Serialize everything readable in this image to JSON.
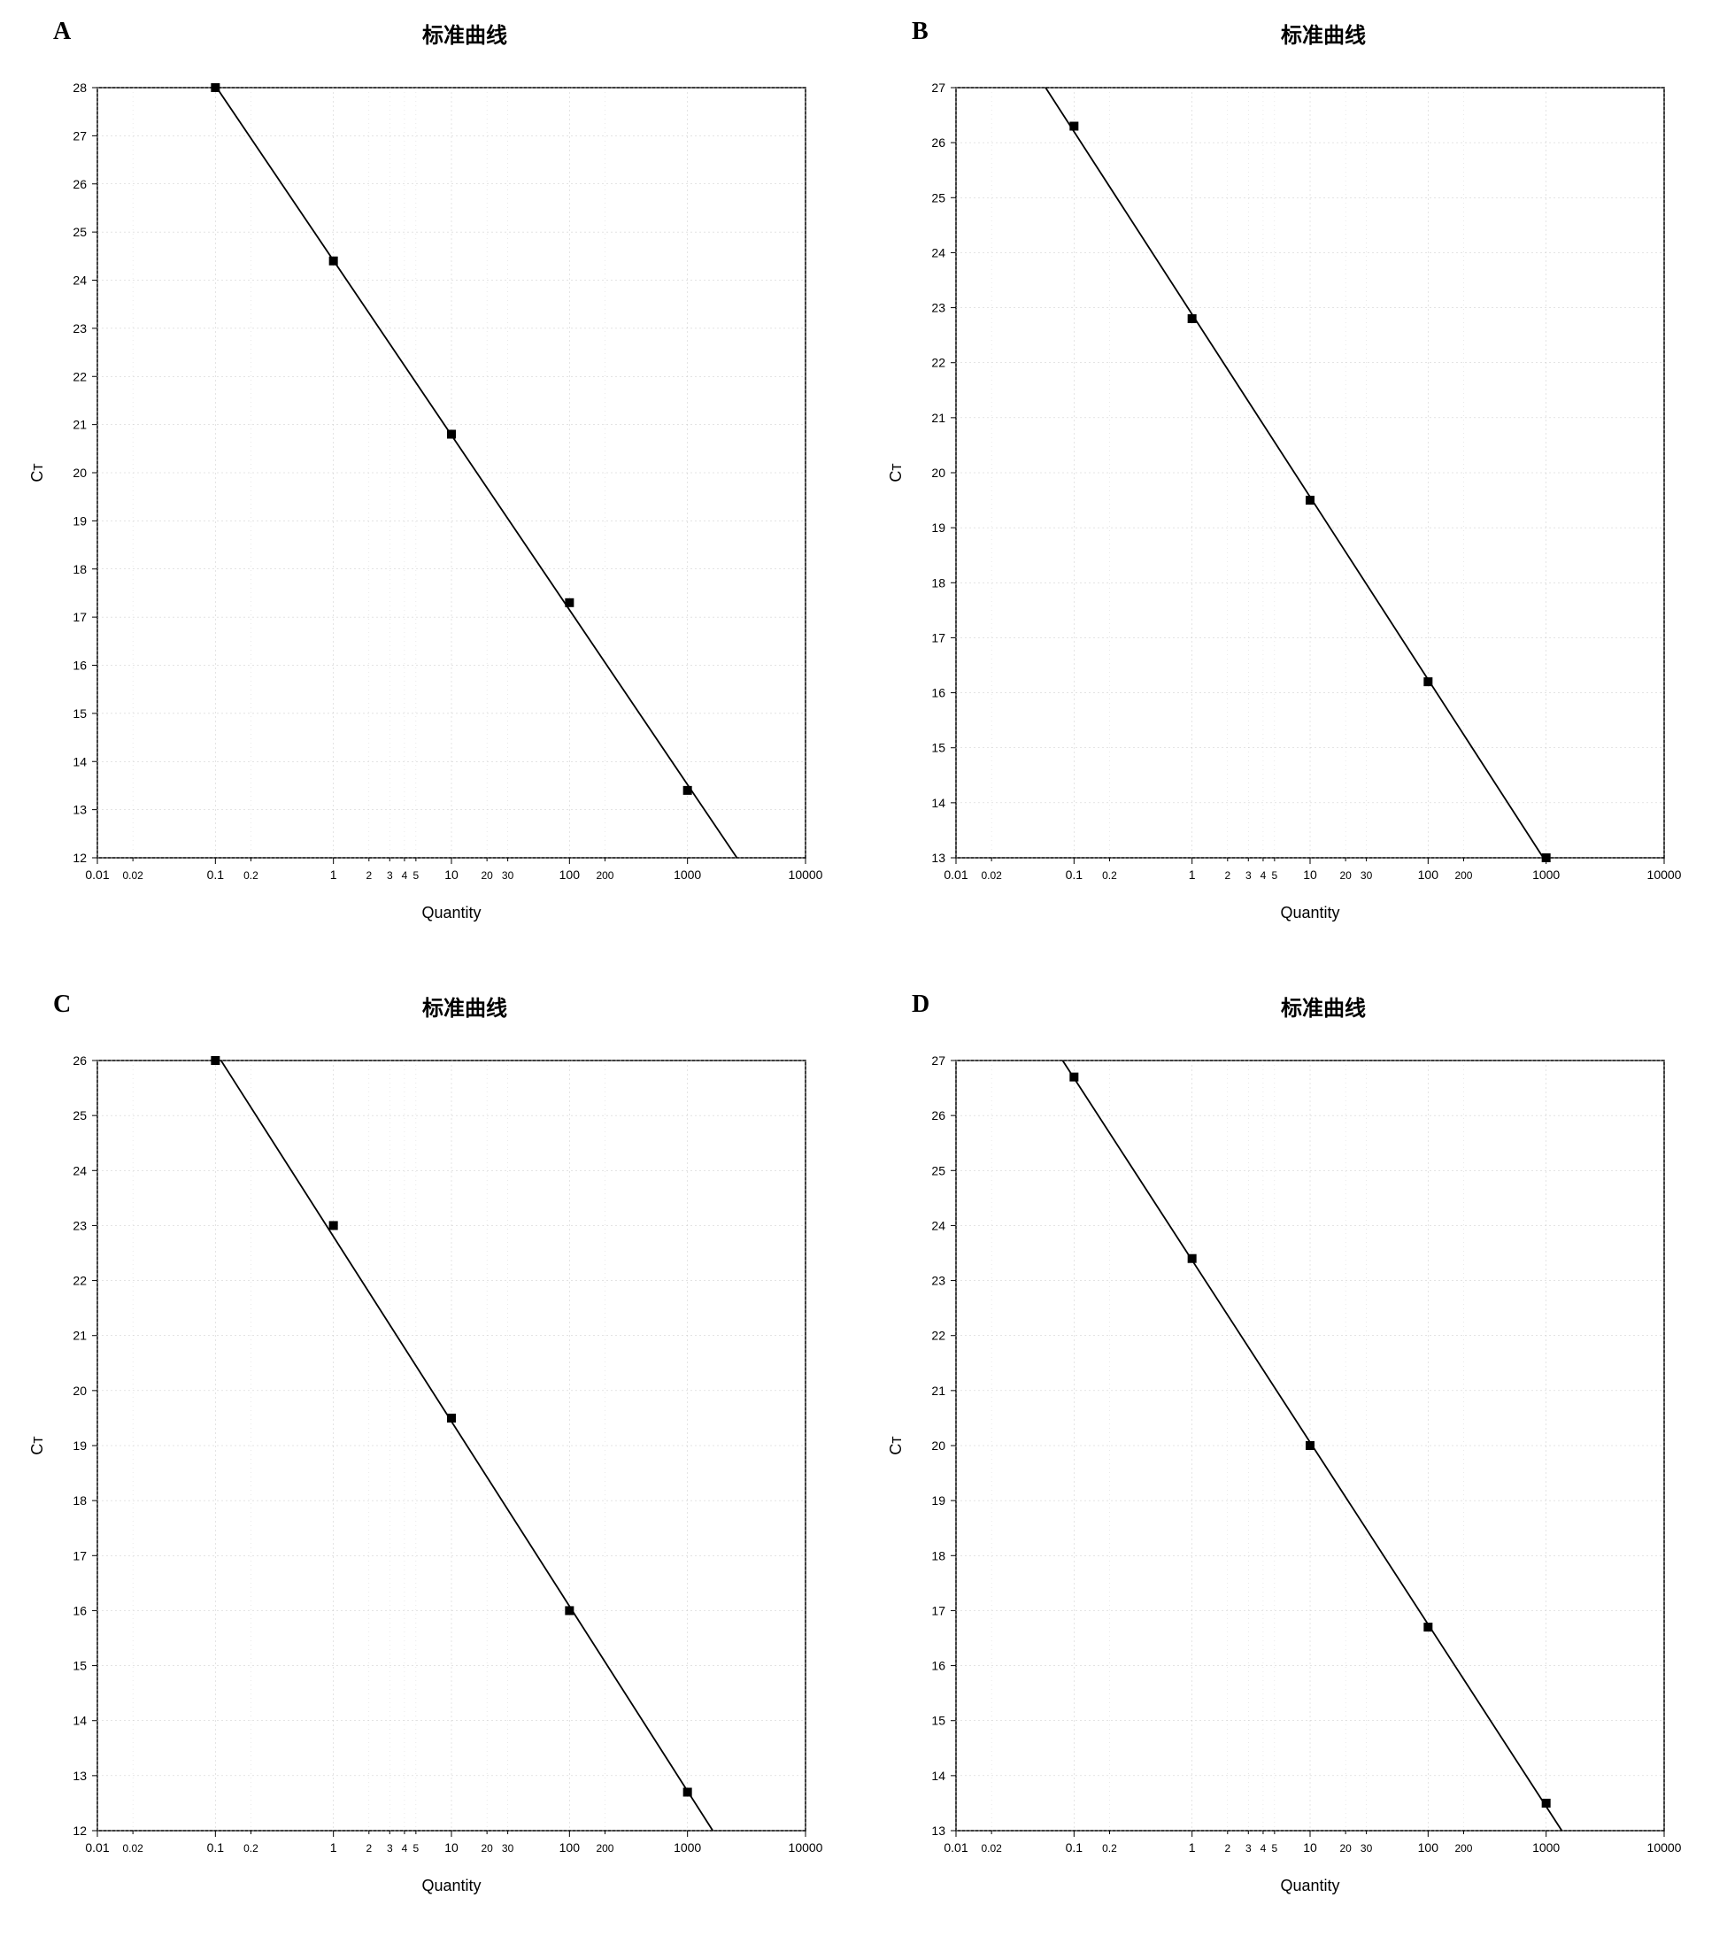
{
  "global": {
    "title": "标准曲线",
    "xlabel": "Quantity",
    "ylabel": "Cᴛ",
    "x_axis_type": "log",
    "x_ticks_major": [
      0.01,
      0.1,
      1,
      10,
      100,
      1000,
      10000
    ],
    "x_tick_labels_major": [
      "0.01",
      "0.1",
      "1",
      "10",
      "100",
      "1000",
      "10000"
    ],
    "x_ticks_minor": [
      0.02,
      0.2,
      2,
      3,
      4,
      5,
      20,
      30,
      200
    ],
    "x_tick_labels_minor": [
      "0.02",
      "0.2",
      "2",
      "3",
      "4",
      "5",
      "20",
      "30",
      "200"
    ],
    "background_color": "#ffffff",
    "grid_color": "#c8c8c8",
    "axis_color": "#000000",
    "line_color": "#000000",
    "marker_color": "#000000",
    "marker_size": 10,
    "line_width": 1.8,
    "title_fontsize": 24,
    "label_fontsize": 18,
    "tick_fontsize": 14,
    "panel_label_fontsize": 28
  },
  "panels": [
    {
      "id": "A",
      "ylim": [
        12,
        28
      ],
      "ytick_step": 1,
      "points": [
        {
          "x": 0.1,
          "y": 28.0
        },
        {
          "x": 1,
          "y": 24.4
        },
        {
          "x": 10,
          "y": 20.8
        },
        {
          "x": 100,
          "y": 17.3
        },
        {
          "x": 1000,
          "y": 13.4
        }
      ]
    },
    {
      "id": "B",
      "ylim": [
        13,
        27
      ],
      "ytick_step": 1,
      "points": [
        {
          "x": 0.1,
          "y": 26.3
        },
        {
          "x": 1,
          "y": 22.8
        },
        {
          "x": 10,
          "y": 19.5
        },
        {
          "x": 100,
          "y": 16.2
        },
        {
          "x": 1000,
          "y": 13.0
        }
      ]
    },
    {
      "id": "C",
      "ylim": [
        12,
        26
      ],
      "ytick_step": 1,
      "points": [
        {
          "x": 0.1,
          "y": 26.0
        },
        {
          "x": 1,
          "y": 23.0
        },
        {
          "x": 10,
          "y": 19.5
        },
        {
          "x": 100,
          "y": 16.0
        },
        {
          "x": 1000,
          "y": 12.7
        }
      ]
    },
    {
      "id": "D",
      "ylim": [
        13,
        27
      ],
      "ytick_step": 1,
      "points": [
        {
          "x": 0.1,
          "y": 26.7
        },
        {
          "x": 1,
          "y": 23.4
        },
        {
          "x": 10,
          "y": 20.0
        },
        {
          "x": 100,
          "y": 16.7
        },
        {
          "x": 1000,
          "y": 13.5
        }
      ]
    }
  ]
}
